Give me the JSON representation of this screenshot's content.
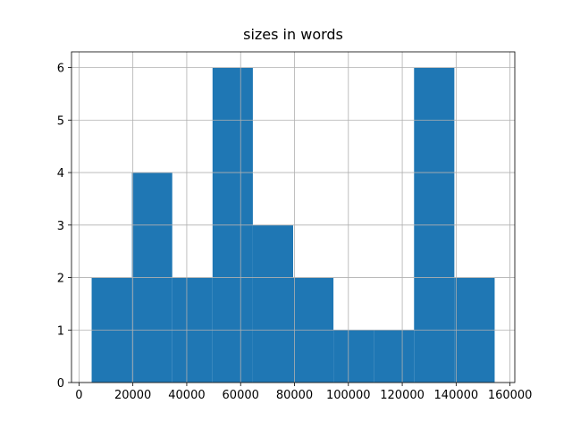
{
  "chart_data": {
    "type": "histogram",
    "title": "sizes in words",
    "bins": [
      4700,
      19660,
      34620,
      49580,
      64540,
      79500,
      94460,
      109420,
      124380,
      139340,
      154300
    ],
    "values": [
      2,
      4,
      2,
      6,
      3,
      2,
      1,
      1,
      6,
      2
    ],
    "color": "#1f77b4",
    "xlim": [
      -2780,
      161780
    ],
    "xticks": [
      0,
      20000,
      40000,
      60000,
      80000,
      100000,
      120000,
      140000,
      160000
    ],
    "ylim": [
      0,
      6.3
    ],
    "yticks": [
      0,
      1,
      2,
      3,
      4,
      5,
      6
    ],
    "grid": true
  }
}
